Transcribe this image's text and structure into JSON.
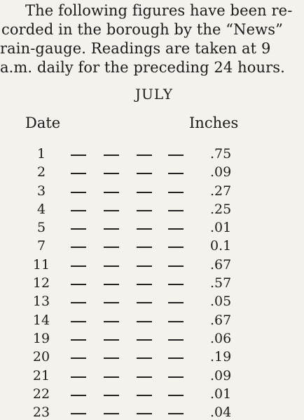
{
  "intro": {
    "lines": [
      "The following figures have been re-",
      "corded in the borough by the “News”",
      "rain-gauge. Readings are taken at 9",
      "a.m. daily for the preceding 24 hours."
    ]
  },
  "month": "JULY",
  "headers": {
    "date": "Date",
    "inches": "Inches"
  },
  "rows": [
    {
      "date": "1",
      "inches": ".75"
    },
    {
      "date": "2",
      "inches": ".09"
    },
    {
      "date": "3",
      "inches": ".27"
    },
    {
      "date": "4",
      "inches": ".25"
    },
    {
      "date": "5",
      "inches": ".01"
    },
    {
      "date": "7",
      "inches": "0.1"
    },
    {
      "date": "11",
      "inches": ".67"
    },
    {
      "date": "12",
      "inches": ".57"
    },
    {
      "date": "13",
      "inches": ".05"
    },
    {
      "date": "14",
      "inches": ".67"
    },
    {
      "date": "19",
      "inches": ".06"
    },
    {
      "date": "20",
      "inches": ".19"
    },
    {
      "date": "21",
      "inches": ".09"
    },
    {
      "date": "22",
      "inches": ".01"
    },
    {
      "date": "23",
      "inches": ".04"
    }
  ]
}
